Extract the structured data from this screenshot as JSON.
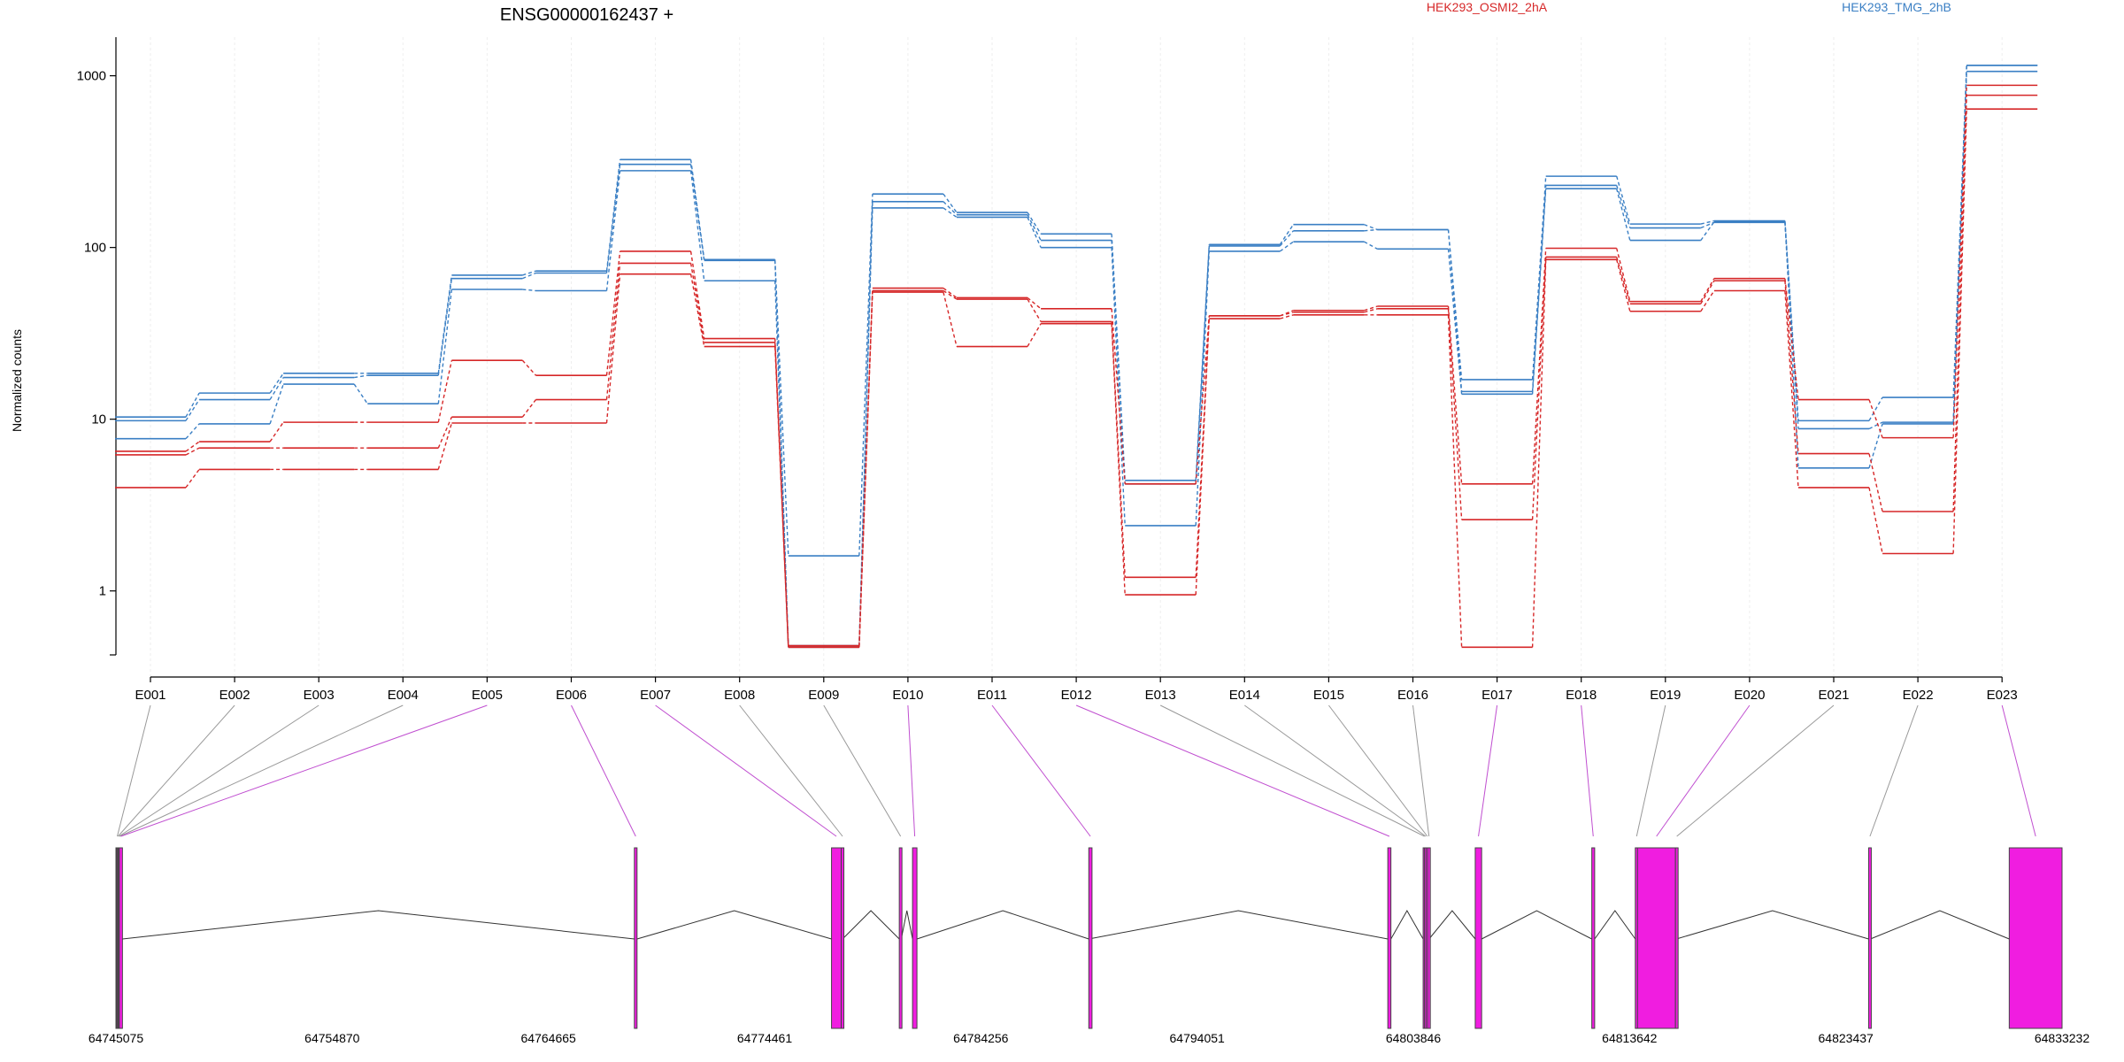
{
  "chart_data": {
    "type": "line",
    "title": "ENSG00000162437 +",
    "ylabel": "Normalized counts",
    "yscale": "log",
    "ylim": [
      0.45,
      1600
    ],
    "yticks": [
      "1",
      "10",
      "100",
      "1000"
    ],
    "categories": [
      "E001",
      "E002",
      "E003",
      "E004",
      "E005",
      "E006",
      "E007",
      "E008",
      "E009",
      "E010",
      "E011",
      "E012",
      "E013",
      "E014",
      "E015",
      "E016",
      "E017",
      "E018",
      "E019",
      "E020",
      "E021",
      "E022",
      "E023"
    ],
    "legend": [
      {
        "label": "HEK293_OSMI2_2hA",
        "color": "#d62728"
      },
      {
        "label": "HEK293_TMG_2hB",
        "color": "#3a7fc4"
      }
    ],
    "series": [
      {
        "group": "HEK293_TMG_2hB",
        "color": "#3a7fc4",
        "values": [
          10.3,
          14.2,
          18.5,
          18.5,
          69,
          73,
          325,
          85,
          1.6,
          205,
          160,
          120,
          4.4,
          104,
          136,
          127,
          17,
          260,
          137,
          143,
          9.8,
          13.4,
          1150
        ]
      },
      {
        "group": "HEK293_TMG_2hB",
        "color": "#3a7fc4",
        "values": [
          9.8,
          13,
          17.5,
          18,
          66,
          71,
          305,
          84,
          0.48,
          185,
          155,
          110,
          4.2,
          102,
          125,
          127,
          14.5,
          230,
          130,
          140,
          8.8,
          9.6,
          1150
        ]
      },
      {
        "group": "HEK293_TMG_2hB",
        "color": "#3a7fc4",
        "values": [
          7.7,
          9.4,
          16,
          12.3,
          57,
          56,
          280,
          64,
          0.47,
          170,
          150,
          100,
          2.4,
          95,
          108,
          98,
          14,
          220,
          110,
          141,
          5.2,
          9.4,
          1060
        ]
      },
      {
        "group": "HEK293_OSMI2_2hA",
        "color": "#d62728",
        "values": [
          6.5,
          7.4,
          9.6,
          9.6,
          22,
          18,
          95,
          29.5,
          0.47,
          58,
          51,
          44,
          4.2,
          40,
          43,
          45.5,
          4.2,
          99,
          48.5,
          66,
          13,
          7.8,
          880
        ]
      },
      {
        "group": "HEK293_OSMI2_2hA",
        "color": "#d62728",
        "values": [
          6.2,
          6.8,
          6.8,
          6.8,
          10.3,
          13,
          81,
          28,
          0.48,
          56,
          50,
          37,
          1.2,
          40,
          42,
          44,
          2.6,
          88,
          47,
          64,
          6.3,
          2.9,
          770
        ]
      },
      {
        "group": "HEK293_OSMI2_2hA",
        "color": "#d62728",
        "values": [
          4,
          5.1,
          5.1,
          5.1,
          9.5,
          9.5,
          70,
          26.5,
          0.47,
          55,
          26.5,
          36,
          0.95,
          38.5,
          40.5,
          40.5,
          0.47,
          85,
          42.5,
          56,
          4,
          1.65,
          640
        ]
      }
    ],
    "exon_layout": {
      "coord_ticks": [
        "64745075",
        "64754870",
        "64764665",
        "64774461",
        "64784256",
        "64794051",
        "64803846",
        "64813642",
        "64823437",
        "64833232"
      ],
      "exons": [
        {
          "id": "E001",
          "start": 64745075,
          "end": 64745110
        },
        {
          "id": "E002",
          "start": 64745110,
          "end": 64745155
        },
        {
          "id": "E003",
          "start": 64745155,
          "end": 64745190
        },
        {
          "id": "E004",
          "start": 64745190,
          "end": 64745230
        },
        {
          "id": "E005",
          "start": 64745230,
          "end": 64745370
        },
        {
          "id": "E006",
          "start": 64768560,
          "end": 64768680
        },
        {
          "id": "E007",
          "start": 64777490,
          "end": 64777930
        },
        {
          "id": "E008",
          "start": 64777930,
          "end": 64777990
        },
        {
          "id": "E009",
          "start": 64780560,
          "end": 64780650
        },
        {
          "id": "E010",
          "start": 64781160,
          "end": 64781360
        },
        {
          "id": "E011",
          "start": 64789145,
          "end": 64789290
        },
        {
          "id": "E012",
          "start": 64802690,
          "end": 64802830
        },
        {
          "id": "E013",
          "start": 64804290,
          "end": 64804350
        },
        {
          "id": "E014",
          "start": 64804350,
          "end": 64804420
        },
        {
          "id": "E015",
          "start": 64804420,
          "end": 64804495
        },
        {
          "id": "E016",
          "start": 64804495,
          "end": 64804560
        },
        {
          "id": "E017",
          "start": 64806650,
          "end": 64806940
        },
        {
          "id": "E018",
          "start": 64811930,
          "end": 64812060
        },
        {
          "id": "E019",
          "start": 64813900,
          "end": 64814000
        },
        {
          "id": "E020",
          "start": 64814000,
          "end": 64815720
        },
        {
          "id": "E021",
          "start": 64815720,
          "end": 64815760
        },
        {
          "id": "E022",
          "start": 64824470,
          "end": 64824550
        },
        {
          "id": "E023",
          "start": 64830840,
          "end": 64833232
        }
      ],
      "exon_fill": "#f01de0",
      "introns": [
        [
          64745370,
          64768560
        ],
        [
          64768680,
          64777490
        ],
        [
          64777990,
          64780560
        ],
        [
          64780650,
          64781160
        ],
        [
          64781360,
          64789145
        ],
        [
          64789145,
          64802690
        ],
        [
          64802830,
          64804290
        ],
        [
          64804560,
          64806650
        ],
        [
          64806940,
          64811930
        ],
        [
          64812060,
          64813900
        ],
        [
          64815760,
          64824470
        ],
        [
          64824550,
          64830840
        ]
      ]
    }
  }
}
